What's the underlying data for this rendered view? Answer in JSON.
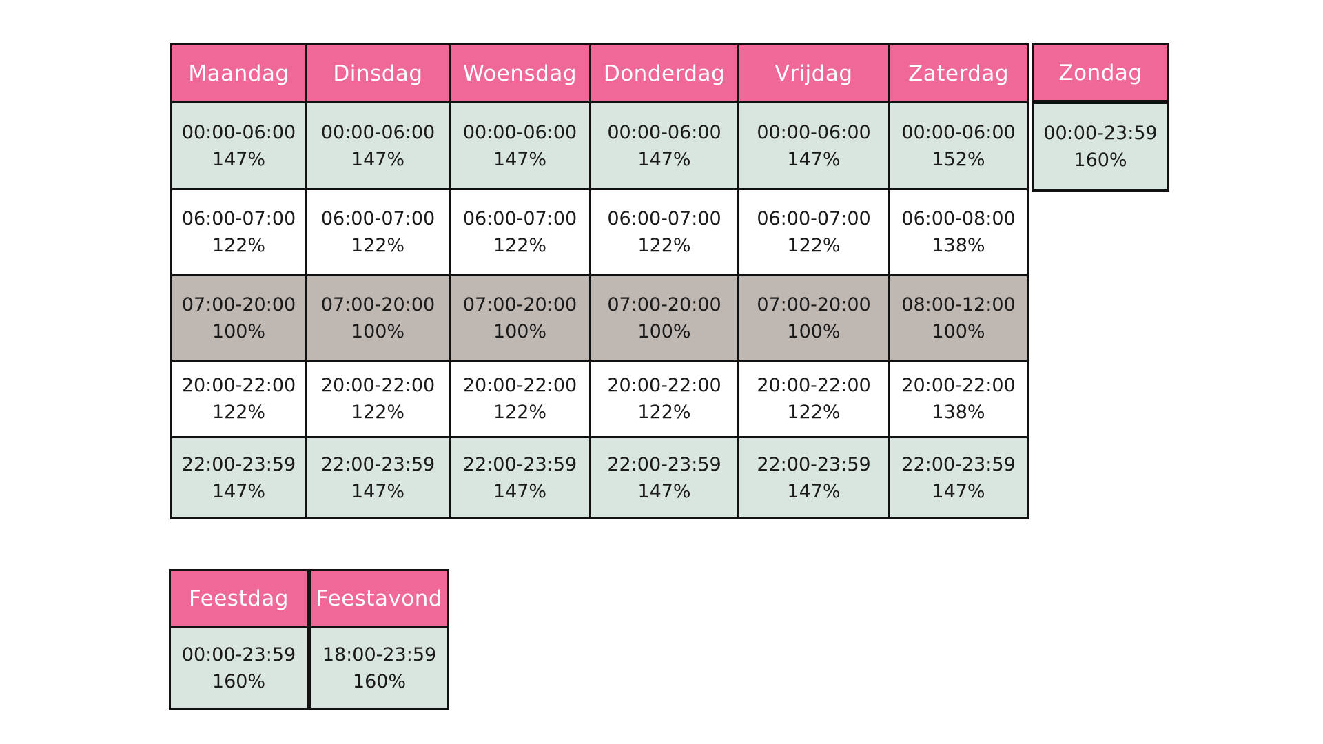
{
  "colors": {
    "header": "#f06898",
    "night": "#d9e6df",
    "shoulder": "#ffffff",
    "day": "#bfb8b2",
    "border": "#111111"
  },
  "week": [
    {
      "day": "Maandag",
      "slots": [
        {
          "time": "00:00-06:00",
          "rate": "147%"
        },
        {
          "time": "06:00-07:00",
          "rate": "122%"
        },
        {
          "time": "07:00-20:00",
          "rate": "100%"
        },
        {
          "time": "20:00-22:00",
          "rate": "122%"
        },
        {
          "time": "22:00-23:59",
          "rate": "147%"
        }
      ]
    },
    {
      "day": "Dinsdag",
      "slots": [
        {
          "time": "00:00-06:00",
          "rate": "147%"
        },
        {
          "time": "06:00-07:00",
          "rate": "122%"
        },
        {
          "time": "07:00-20:00",
          "rate": "100%"
        },
        {
          "time": "20:00-22:00",
          "rate": "122%"
        },
        {
          "time": "22:00-23:59",
          "rate": "147%"
        }
      ]
    },
    {
      "day": "Woensdag",
      "slots": [
        {
          "time": "00:00-06:00",
          "rate": "147%"
        },
        {
          "time": "06:00-07:00",
          "rate": "122%"
        },
        {
          "time": "07:00-20:00",
          "rate": "100%"
        },
        {
          "time": "20:00-22:00",
          "rate": "122%"
        },
        {
          "time": "22:00-23:59",
          "rate": "147%"
        }
      ]
    },
    {
      "day": "Donderdag",
      "slots": [
        {
          "time": "00:00-06:00",
          "rate": "147%"
        },
        {
          "time": "06:00-07:00",
          "rate": "122%"
        },
        {
          "time": "07:00-20:00",
          "rate": "100%"
        },
        {
          "time": "20:00-22:00",
          "rate": "122%"
        },
        {
          "time": "22:00-23:59",
          "rate": "147%"
        }
      ]
    },
    {
      "day": "Vrijdag",
      "slots": [
        {
          "time": "00:00-06:00",
          "rate": "147%"
        },
        {
          "time": "06:00-07:00",
          "rate": "122%"
        },
        {
          "time": "07:00-20:00",
          "rate": "100%"
        },
        {
          "time": "20:00-22:00",
          "rate": "122%"
        },
        {
          "time": "22:00-23:59",
          "rate": "147%"
        }
      ]
    },
    {
      "day": "Zaterdag",
      "slots": [
        {
          "time": "00:00-06:00",
          "rate": "152%"
        },
        {
          "time": "06:00-08:00",
          "rate": "138%"
        },
        {
          "time": "08:00-12:00",
          "rate": "100%"
        },
        {
          "time": "20:00-22:00",
          "rate": "138%"
        },
        {
          "time": "22:00-23:59",
          "rate": "147%"
        }
      ]
    },
    {
      "day": "Zondag",
      "slots": [
        {
          "time": "00:00-23:59",
          "rate": "160%"
        }
      ]
    }
  ],
  "holidays": [
    {
      "day": "Feestdag",
      "slots": [
        {
          "time": "00:00-23:59",
          "rate": "160%"
        }
      ]
    },
    {
      "day": "Feestavond",
      "slots": [
        {
          "time": "18:00-23:59",
          "rate": "160%"
        }
      ]
    }
  ]
}
